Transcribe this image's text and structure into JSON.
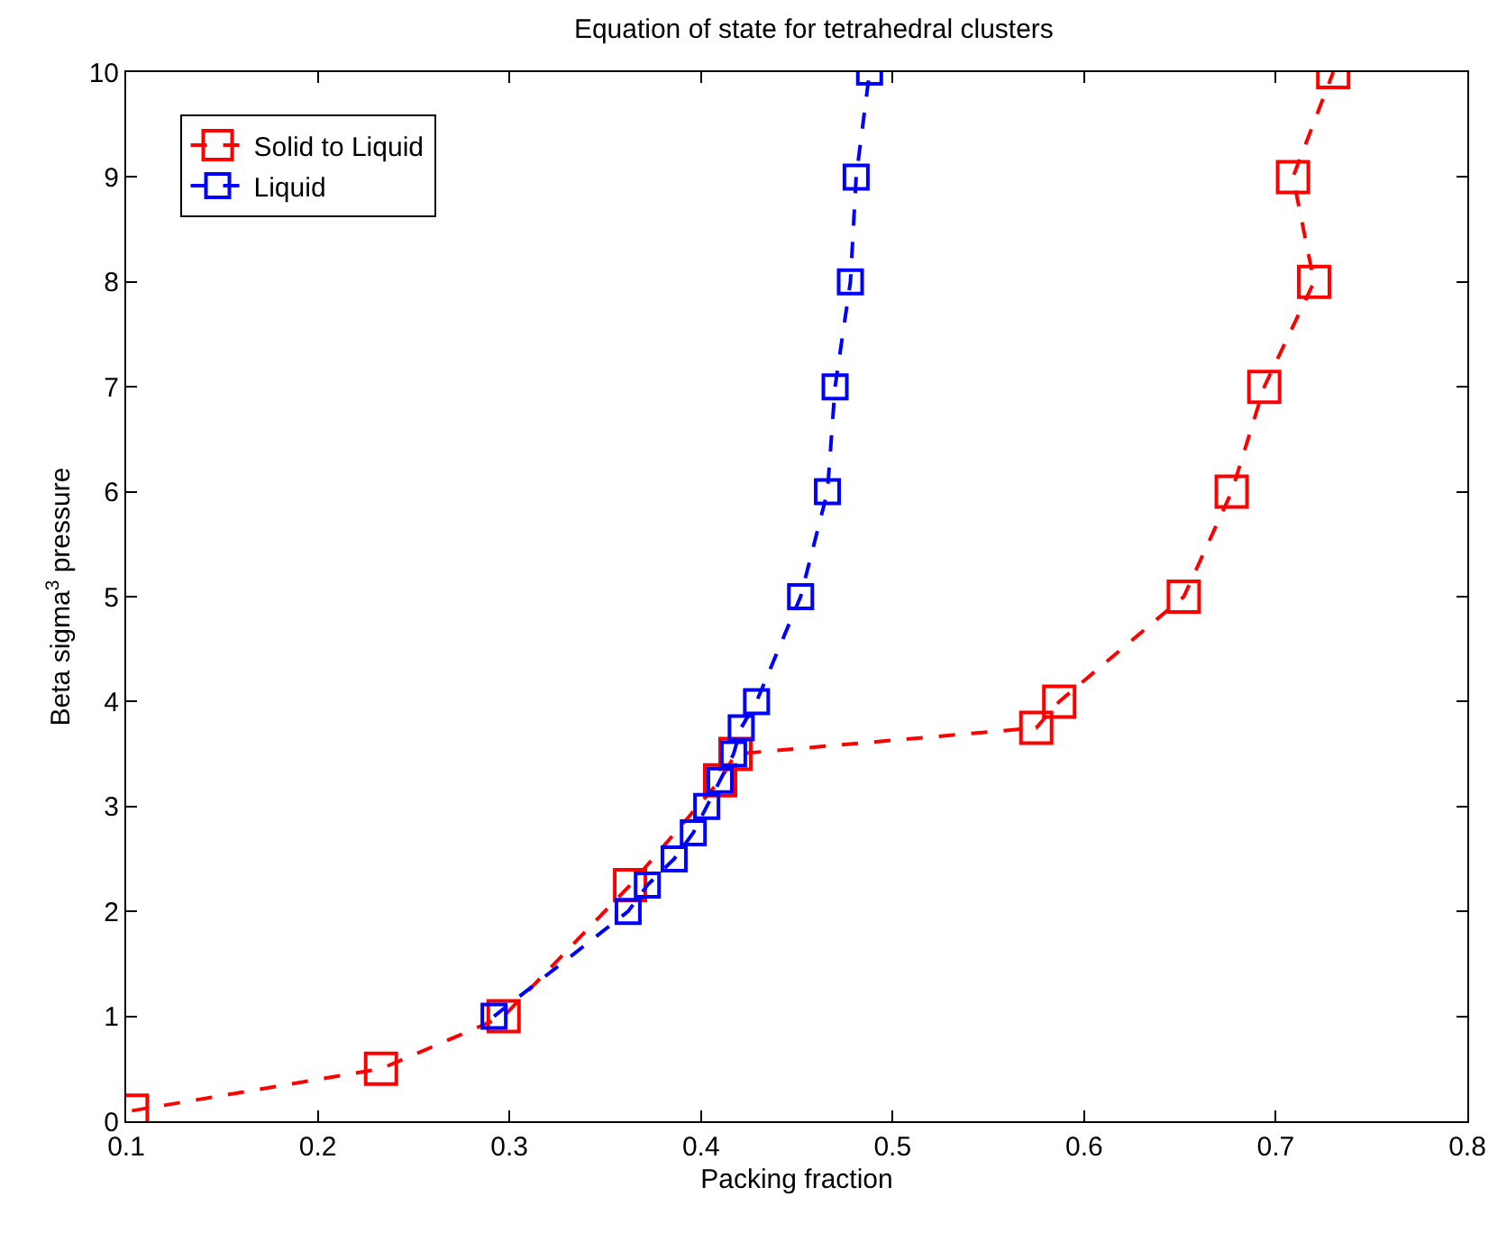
{
  "chart_data": {
    "type": "line",
    "title": "Equation of state for tetrahedral clusters",
    "xlabel": "Packing fraction",
    "ylabel": "Beta sigma$^{3}$ pressure",
    "xlim": [
      0.1,
      0.8
    ],
    "xticks": [
      0.1,
      0.2,
      0.3,
      0.4,
      0.5,
      0.6,
      0.7,
      0.8
    ],
    "ylim": [
      0,
      10
    ],
    "yticks": [
      0,
      1,
      2,
      3,
      4,
      5,
      6,
      7,
      8,
      9,
      10
    ],
    "legend": "top left",
    "marker": "square",
    "line_style": "dashed",
    "series": [
      {
        "name": "Solid to Liquid",
        "color": "#ff0000",
        "x": [
          0.103,
          0.233,
          0.297,
          0.363,
          0.41,
          0.418,
          0.575,
          0.587,
          0.652,
          0.677,
          0.694,
          0.72,
          0.709,
          0.73
        ],
        "values": [
          0.1,
          0.5,
          1,
          2.25,
          3.25,
          3.5,
          3.75,
          4,
          5,
          6,
          7,
          8,
          9,
          10
        ]
      },
      {
        "name": "Liquid",
        "color": "#0000ff",
        "x": [
          0.292,
          0.362,
          0.372,
          0.386,
          0.396,
          0.403,
          0.41,
          0.417,
          0.421,
          0.429,
          0.452,
          0.466,
          0.47,
          0.478,
          0.481,
          0.488
        ],
        "values": [
          1,
          2,
          2.25,
          2.5,
          2.75,
          3,
          3.25,
          3.5,
          3.75,
          4,
          5,
          6,
          7,
          8,
          9,
          10
        ]
      }
    ]
  }
}
